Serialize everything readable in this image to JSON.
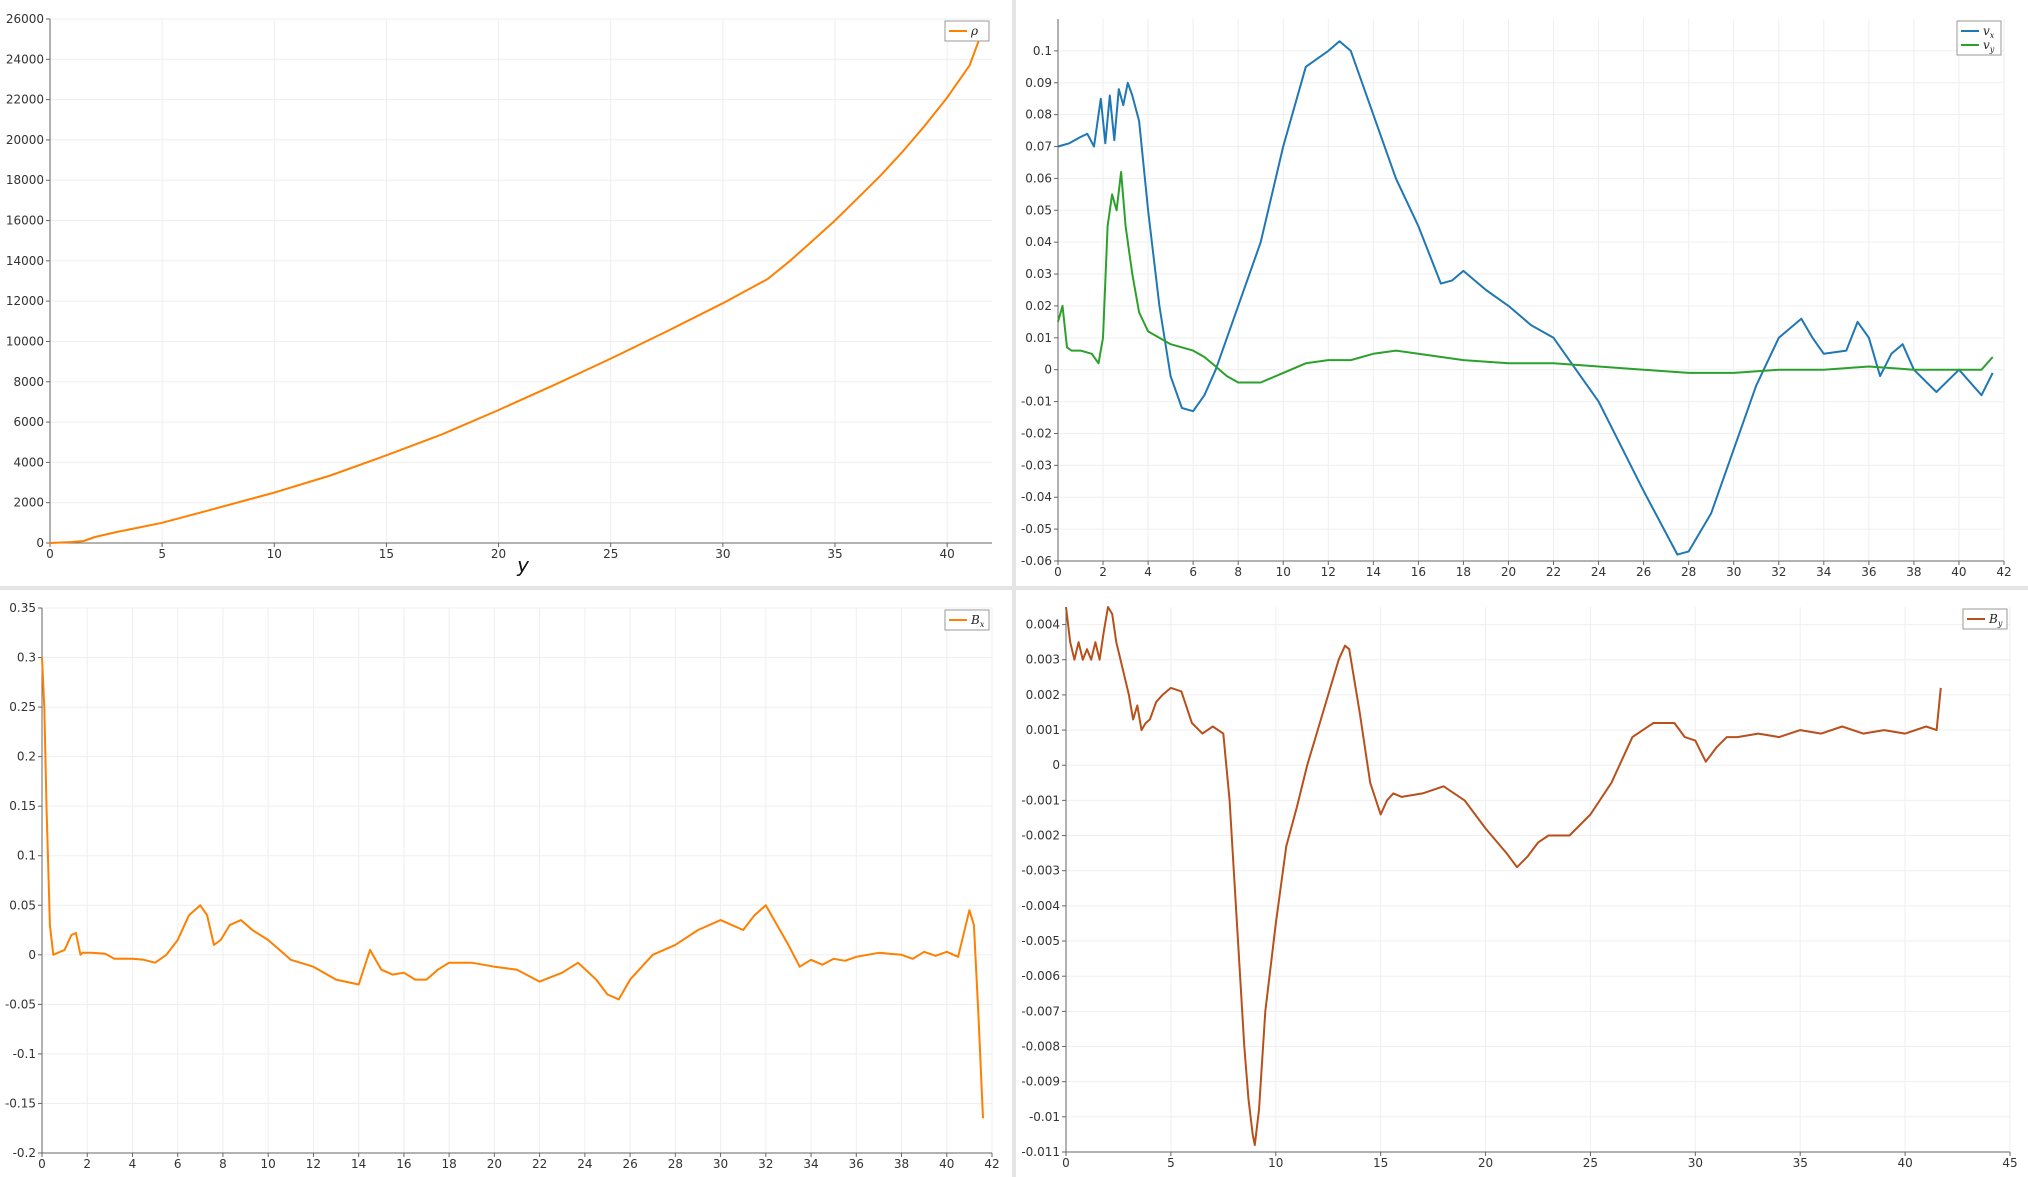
{
  "charts": [
    {
      "id": "rho",
      "type": "line",
      "xlim": [
        0,
        42
      ],
      "ylim": [
        0,
        26000
      ],
      "xticks": [
        0,
        5,
        10,
        15,
        20,
        25,
        30,
        35,
        40
      ],
      "yticks": [
        0,
        2000,
        4000,
        6000,
        8000,
        10000,
        12000,
        14000,
        16000,
        18000,
        20000,
        22000,
        24000,
        26000
      ],
      "xlabel": "y",
      "ylabel": "",
      "grid": true,
      "legend_position": "top-right",
      "series": [
        {
          "name": "ρ",
          "sub": "",
          "color": "#ff8000",
          "x": [
            0,
            1,
            1.5,
            2,
            3,
            5,
            7,
            10,
            12.5,
            15,
            17.5,
            20,
            22.5,
            25,
            27.5,
            30,
            32,
            33,
            34,
            35,
            36,
            37,
            38,
            39,
            40,
            41,
            41.5
          ],
          "y": [
            0,
            50,
            100,
            300,
            550,
            1000,
            1600,
            2500,
            3350,
            4350,
            5400,
            6600,
            7850,
            9150,
            10500,
            11900,
            13100,
            14000,
            15000,
            16000,
            17100,
            18200,
            19400,
            20700,
            22100,
            23700,
            25200
          ]
        }
      ]
    },
    {
      "id": "v",
      "type": "line",
      "xlim": [
        0,
        42
      ],
      "ylim": [
        -0.06,
        0.11
      ],
      "xticks": [
        0,
        2,
        4,
        6,
        8,
        10,
        12,
        14,
        16,
        18,
        20,
        22,
        24,
        26,
        28,
        30,
        32,
        34,
        36,
        38,
        40,
        42
      ],
      "yticks": [
        -0.06,
        -0.05,
        -0.04,
        -0.03,
        -0.02,
        -0.01,
        0,
        0.01,
        0.02,
        0.03,
        0.04,
        0.05,
        0.06,
        0.07,
        0.08,
        0.09,
        0.1
      ],
      "xlabel": "",
      "ylabel": "",
      "grid": true,
      "legend_position": "top-right",
      "series": [
        {
          "name": "v",
          "sub": "x",
          "color": "#1f77b4",
          "x": [
            0,
            0.5,
            1,
            1.3,
            1.6,
            1.9,
            2.1,
            2.3,
            2.5,
            2.7,
            2.9,
            3.1,
            3.3,
            3.6,
            4.0,
            4.5,
            5.0,
            5.5,
            6.0,
            6.5,
            7.0,
            8.0,
            9.0,
            10.0,
            11.0,
            12.0,
            12.5,
            13.0,
            14.0,
            15.0,
            16.0,
            17.0,
            17.5,
            18.0,
            19.0,
            20.0,
            21.0,
            22.0,
            24.0,
            26.0,
            27.5,
            28.0,
            29.0,
            30.0,
            31.0,
            32.0,
            33.0,
            33.5,
            34.0,
            35.0,
            35.5,
            36.0,
            36.5,
            37.0,
            37.5,
            38.0,
            39.0,
            40.0,
            41.0,
            41.5
          ],
          "y": [
            0.07,
            0.071,
            0.073,
            0.074,
            0.07,
            0.085,
            0.071,
            0.086,
            0.072,
            0.088,
            0.083,
            0.09,
            0.086,
            0.078,
            0.05,
            0.02,
            -0.002,
            -0.012,
            -0.013,
            -0.008,
            0.0,
            0.02,
            0.04,
            0.07,
            0.095,
            0.1,
            0.103,
            0.1,
            0.08,
            0.06,
            0.045,
            0.027,
            0.028,
            0.031,
            0.025,
            0.02,
            0.014,
            0.01,
            -0.01,
            -0.038,
            -0.058,
            -0.057,
            -0.045,
            -0.025,
            -0.005,
            0.01,
            0.016,
            0.01,
            0.005,
            0.006,
            0.015,
            0.01,
            -0.002,
            0.005,
            0.008,
            0.0,
            -0.007,
            0.0,
            -0.008,
            -0.001
          ]
        },
        {
          "name": "v",
          "sub": "y",
          "color": "#2ca02c",
          "x": [
            0,
            0.2,
            0.4,
            0.6,
            1.0,
            1.5,
            1.8,
            2.0,
            2.2,
            2.4,
            2.6,
            2.8,
            3.0,
            3.3,
            3.6,
            4.0,
            5.0,
            6.0,
            6.5,
            7.0,
            7.5,
            8.0,
            9.0,
            10.0,
            11.0,
            12.0,
            13.0,
            14.0,
            15.0,
            16.0,
            18.0,
            20.0,
            22.0,
            24.0,
            26.0,
            28.0,
            30.0,
            32.0,
            34.0,
            36.0,
            38.0,
            40.0,
            41.0,
            41.5
          ],
          "y": [
            0.015,
            0.02,
            0.007,
            0.006,
            0.006,
            0.005,
            0.002,
            0.01,
            0.045,
            0.055,
            0.05,
            0.062,
            0.045,
            0.03,
            0.018,
            0.012,
            0.008,
            0.006,
            0.004,
            0.001,
            -0.002,
            -0.004,
            -0.004,
            -0.001,
            0.002,
            0.003,
            0.003,
            0.005,
            0.006,
            0.005,
            0.003,
            0.002,
            0.002,
            0.001,
            0.0,
            -0.001,
            -0.001,
            0.0,
            0.0,
            0.001,
            0.0,
            0.0,
            0.0,
            0.004
          ]
        }
      ]
    },
    {
      "id": "bx",
      "type": "line",
      "xlim": [
        0,
        42
      ],
      "ylim": [
        -0.2,
        0.35
      ],
      "xticks": [
        0,
        2,
        4,
        6,
        8,
        10,
        12,
        14,
        16,
        18,
        20,
        22,
        24,
        26,
        28,
        30,
        32,
        34,
        36,
        38,
        40,
        42
      ],
      "yticks": [
        -0.2,
        -0.15,
        -0.1,
        -0.05,
        0,
        0.05,
        0.1,
        0.15,
        0.2,
        0.25,
        0.3,
        0.35
      ],
      "xlabel": "",
      "ylabel": "",
      "grid": true,
      "legend_position": "top-right",
      "series": [
        {
          "name": "B",
          "sub": "x",
          "color": "#ff8000",
          "x": [
            0,
            0.1,
            0.2,
            0.35,
            0.5,
            0.7,
            1.0,
            1.3,
            1.5,
            1.7,
            1.8,
            2.2,
            2.8,
            3.2,
            4.0,
            4.5,
            5.0,
            5.5,
            6.0,
            6.5,
            7.0,
            7.3,
            7.6,
            7.9,
            8.3,
            8.8,
            9.3,
            10.0,
            11.0,
            12.0,
            13.0,
            14.0,
            14.5,
            15.0,
            15.5,
            16.0,
            16.5,
            17.0,
            17.5,
            18.0,
            19.0,
            20.0,
            21.0,
            22.0,
            23.0,
            23.7,
            24.5,
            25.0,
            25.5,
            26.0,
            27.0,
            28.0,
            29.0,
            30.0,
            30.5,
            31.0,
            31.5,
            32.0,
            32.5,
            33.0,
            33.5,
            34.0,
            34.5,
            35.0,
            35.5,
            36.0,
            37.0,
            38.0,
            38.5,
            39.0,
            39.5,
            40.0,
            40.5,
            41.0,
            41.2,
            41.4,
            41.6
          ],
          "y": [
            0.3,
            0.25,
            0.15,
            0.03,
            0.0,
            0.002,
            0.005,
            0.02,
            0.022,
            0.0,
            0.002,
            0.002,
            0.001,
            -0.004,
            -0.004,
            -0.005,
            -0.008,
            0.0,
            0.015,
            0.04,
            0.05,
            0.04,
            0.01,
            0.015,
            0.03,
            0.035,
            0.025,
            0.015,
            -0.005,
            -0.012,
            -0.025,
            -0.03,
            0.005,
            -0.015,
            -0.02,
            -0.018,
            -0.025,
            -0.025,
            -0.015,
            -0.008,
            -0.008,
            -0.012,
            -0.015,
            -0.027,
            -0.018,
            -0.008,
            -0.025,
            -0.04,
            -0.045,
            -0.025,
            0.0,
            0.01,
            0.025,
            0.035,
            0.03,
            0.025,
            0.04,
            0.05,
            0.03,
            0.01,
            -0.012,
            -0.005,
            -0.01,
            -0.004,
            -0.006,
            -0.002,
            0.002,
            0.0,
            -0.004,
            0.003,
            -0.001,
            0.003,
            -0.002,
            0.045,
            0.03,
            -0.06,
            -0.165
          ]
        }
      ]
    },
    {
      "id": "by",
      "type": "line",
      "xlim": [
        0,
        45
      ],
      "ylim": [
        -0.011,
        0.0045
      ],
      "xticks": [
        0,
        5,
        10,
        15,
        20,
        25,
        30,
        35,
        40,
        45
      ],
      "yticks": [
        -0.011,
        -0.01,
        -0.009,
        -0.008,
        -0.007,
        -0.006,
        -0.005,
        -0.004,
        -0.003,
        -0.002,
        -0.001,
        0,
        0.001,
        0.002,
        0.003,
        0.004
      ],
      "xlabel": "",
      "ylabel": "",
      "grid": true,
      "legend_position": "top-right",
      "series": [
        {
          "name": "B",
          "sub": "y",
          "color": "#b8501b",
          "x": [
            0,
            0.2,
            0.4,
            0.6,
            0.8,
            1.0,
            1.2,
            1.4,
            1.6,
            1.8,
            2.0,
            2.2,
            2.4,
            2.6,
            2.8,
            3.0,
            3.2,
            3.4,
            3.6,
            3.8,
            4.0,
            4.3,
            4.6,
            5.0,
            5.5,
            6.0,
            6.5,
            7.0,
            7.5,
            7.8,
            8.0,
            8.3,
            8.5,
            8.7,
            8.9,
            9.0,
            9.2,
            9.5,
            10.0,
            10.5,
            11.0,
            11.5,
            12.0,
            12.5,
            13.0,
            13.3,
            13.5,
            14.0,
            14.5,
            15.0,
            15.3,
            15.6,
            16.0,
            17.0,
            18.0,
            19.0,
            20.0,
            21.0,
            21.5,
            22.0,
            22.5,
            23.0,
            24.0,
            25.0,
            26.0,
            27.0,
            28.0,
            29.0,
            29.5,
            30.0,
            30.5,
            31.0,
            31.5,
            32.0,
            33.0,
            34.0,
            35.0,
            36.0,
            37.0,
            38.0,
            39.0,
            40.0,
            41.0,
            41.5,
            41.7
          ],
          "y": [
            0.0045,
            0.0035,
            0.003,
            0.0035,
            0.003,
            0.0033,
            0.003,
            0.0035,
            0.003,
            0.0038,
            0.0045,
            0.0043,
            0.0035,
            0.003,
            0.0025,
            0.002,
            0.0013,
            0.0017,
            0.001,
            0.0012,
            0.0013,
            0.0018,
            0.002,
            0.0022,
            0.0021,
            0.0012,
            0.0009,
            0.0011,
            0.0009,
            -0.001,
            -0.003,
            -0.006,
            -0.008,
            -0.0095,
            -0.0105,
            -0.0108,
            -0.0098,
            -0.007,
            -0.0045,
            -0.0023,
            -0.0012,
            0.0,
            0.001,
            0.002,
            0.003,
            0.0034,
            0.0033,
            0.0015,
            -0.0005,
            -0.0014,
            -0.001,
            -0.0008,
            -0.0009,
            -0.0008,
            -0.0006,
            -0.001,
            -0.0018,
            -0.0025,
            -0.0029,
            -0.0026,
            -0.0022,
            -0.002,
            -0.002,
            -0.0014,
            -0.0005,
            0.0008,
            0.0012,
            0.0012,
            0.0008,
            0.0007,
            0.0001,
            0.0005,
            0.0008,
            0.0008,
            0.0009,
            0.0008,
            0.001,
            0.0009,
            0.0011,
            0.0009,
            0.001,
            0.0009,
            0.0011,
            0.001,
            0.0022
          ]
        }
      ]
    }
  ]
}
